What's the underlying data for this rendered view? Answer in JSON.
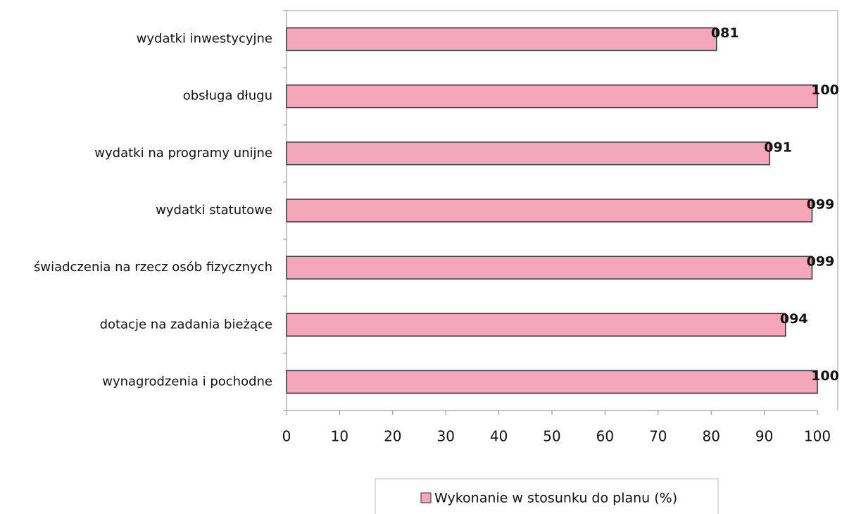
{
  "chart_data": {
    "type": "bar",
    "orientation": "horizontal",
    "categories": [
      "wydatki inwestycyjne",
      "obsługa długu",
      "wydatki na programy unijne",
      "wydatki statutowe",
      "świadczenia na rzecz osób fizycznych",
      "dotacje na zadania bieżące",
      "wynagrodzenia i pochodne"
    ],
    "series": [
      {
        "name": "Wykonanie w stosunku do planu (%)",
        "color": "#f4a7ba",
        "values": [
          81,
          100,
          91,
          99,
          99,
          94,
          100
        ],
        "value_labels": [
          "081",
          "100",
          "091",
          "099",
          "099",
          "094",
          "100"
        ]
      }
    ],
    "xlim": [
      0,
      100
    ],
    "xticks": [
      0,
      10,
      20,
      30,
      40,
      50,
      60,
      70,
      80,
      90,
      100
    ],
    "legend": "bottom"
  }
}
